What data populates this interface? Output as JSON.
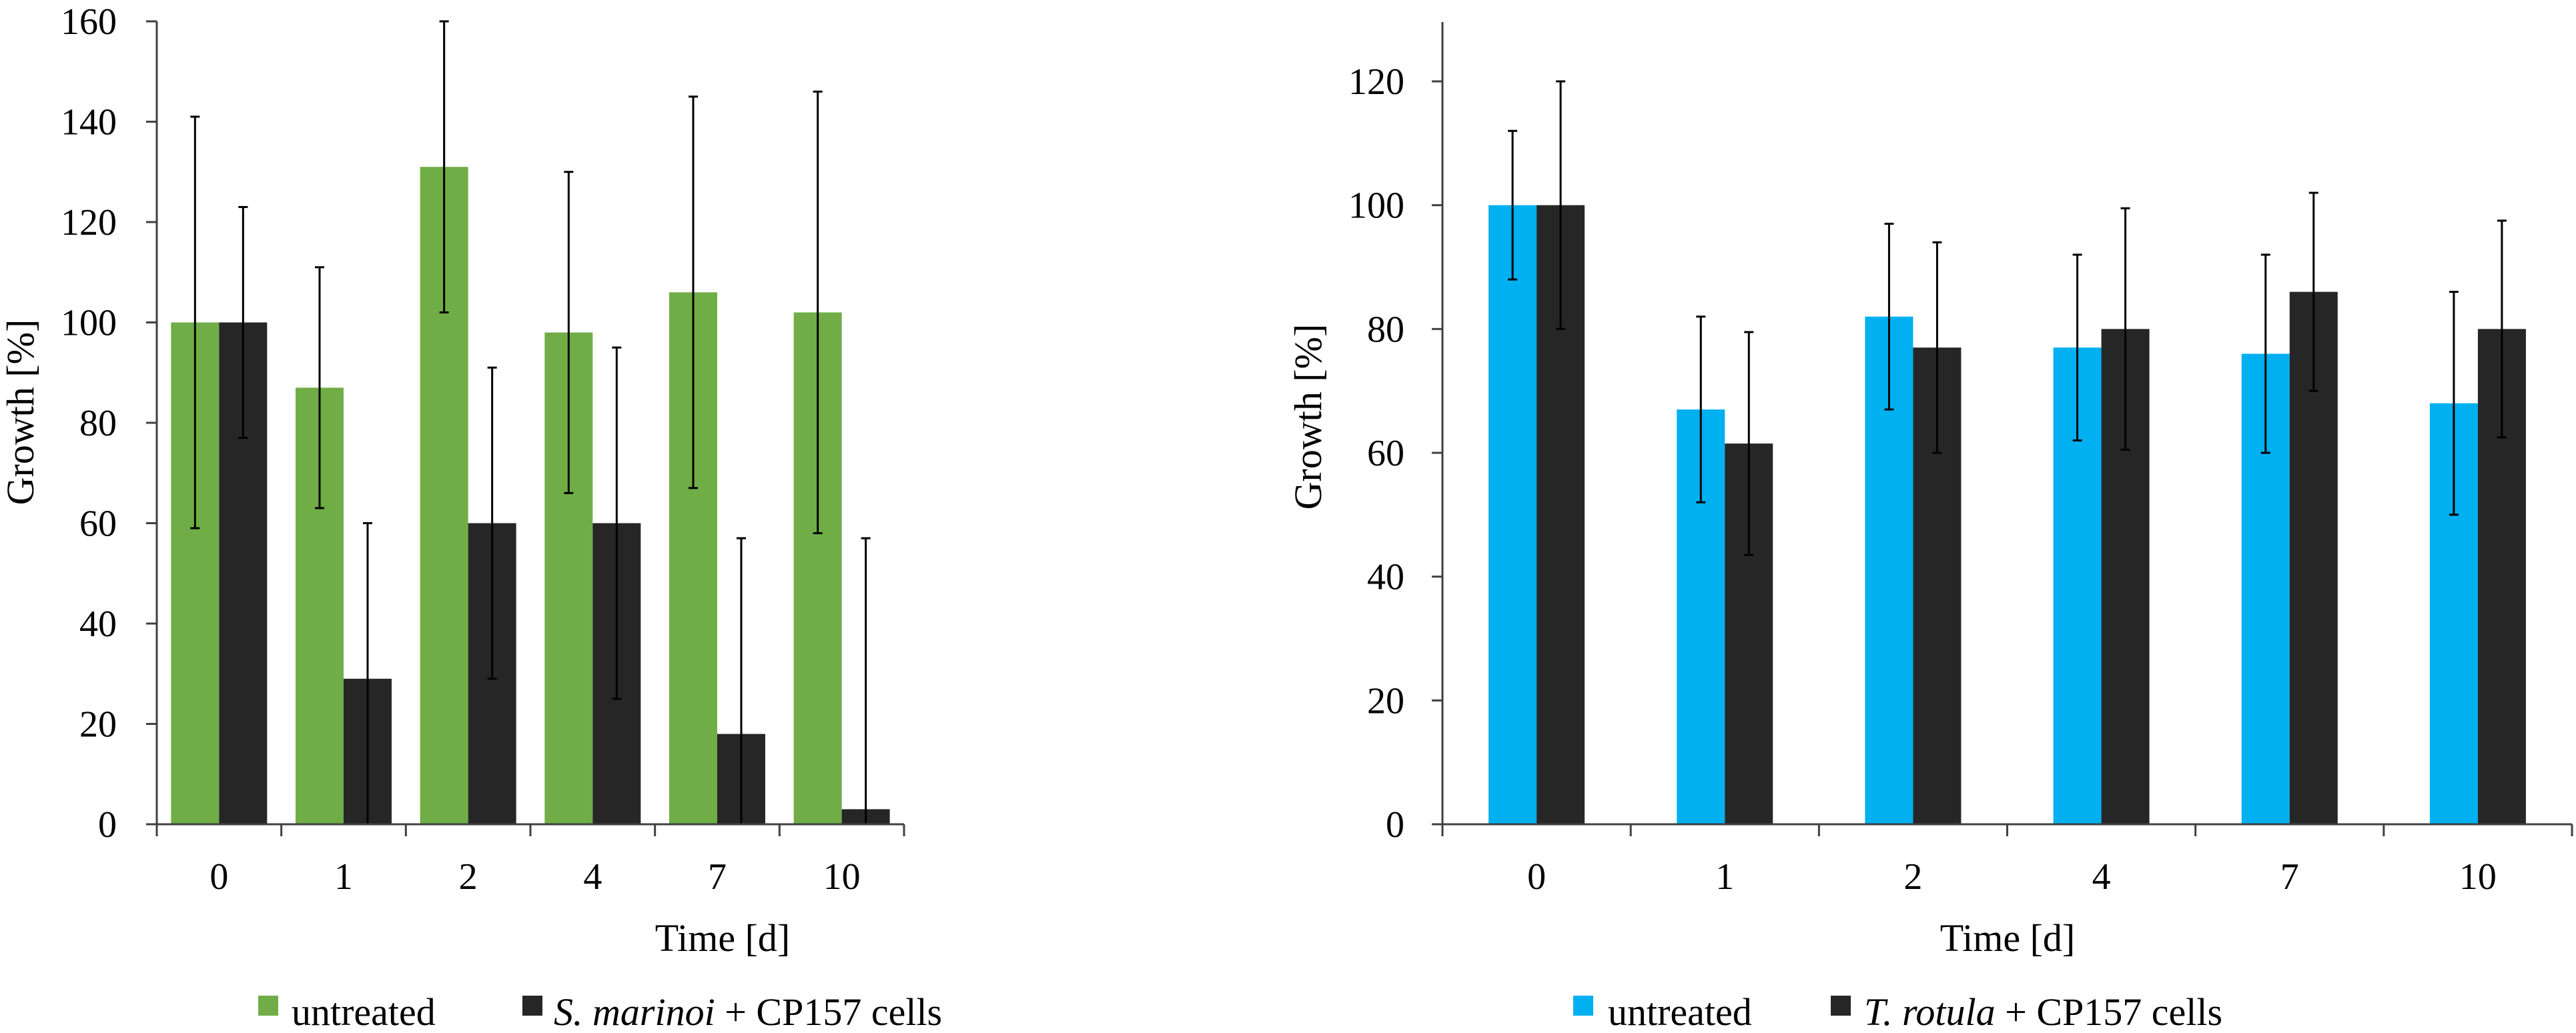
{
  "colors": {
    "untreated_left": "#70ad47",
    "untreated_right": "#00b0f0",
    "treated": "#262626",
    "axis": "#404040",
    "error_bar": "#000000"
  },
  "chart_data": [
    {
      "type": "bar",
      "categories": [
        "0",
        "1",
        "2",
        "4",
        "7",
        "10"
      ],
      "series": [
        {
          "name": "untreated",
          "color": "#70ad47",
          "values": [
            100,
            87,
            131,
            98,
            106,
            102
          ],
          "errors": [
            41,
            24,
            29,
            32,
            39,
            44
          ]
        },
        {
          "name": "S. marinoi + CP157 cells",
          "color": "#262626",
          "values": [
            100,
            29,
            60,
            60,
            18,
            3
          ],
          "errors": [
            23,
            31,
            31,
            35,
            39,
            54
          ]
        }
      ],
      "title": "",
      "xlabel": "Time [d]",
      "ylabel": "Growth [%]",
      "ylim": [
        0,
        160
      ],
      "yticks": [
        0,
        20,
        40,
        60,
        80,
        100,
        120,
        140,
        160
      ],
      "grid": false,
      "legend": {
        "placement": "bottom",
        "entries": [
          {
            "label": "untreated",
            "italic_part": "",
            "rest": ""
          },
          {
            "label": "",
            "italic_part": "S. marinoi",
            "rest": " + CP157 cells"
          }
        ]
      }
    },
    {
      "type": "bar",
      "categories": [
        "0",
        "1",
        "2",
        "4",
        "7",
        "10"
      ],
      "series": [
        {
          "name": "untreated",
          "color": "#00b0f0",
          "values": [
            100,
            67,
            82,
            77,
            76,
            68
          ],
          "errors": [
            12,
            15,
            15,
            15,
            16,
            18
          ]
        },
        {
          "name": "T. rotula + CP157 cells",
          "color": "#262626",
          "values": [
            100,
            61.5,
            77,
            80,
            86,
            80
          ],
          "errors": [
            20,
            18,
            17,
            19.5,
            16,
            17.5
          ]
        }
      ],
      "title": "",
      "xlabel": "Time [d]",
      "ylabel": "Growth [%]",
      "ylim": [
        0,
        130
      ],
      "yticks": [
        0,
        20,
        40,
        60,
        80,
        100,
        120
      ],
      "grid": false,
      "legend": {
        "placement": "bottom",
        "entries": [
          {
            "label": "untreated",
            "italic_part": "",
            "rest": ""
          },
          {
            "label": "",
            "italic_part": "T. rotula",
            "rest": " + CP157 cells"
          }
        ]
      }
    }
  ]
}
